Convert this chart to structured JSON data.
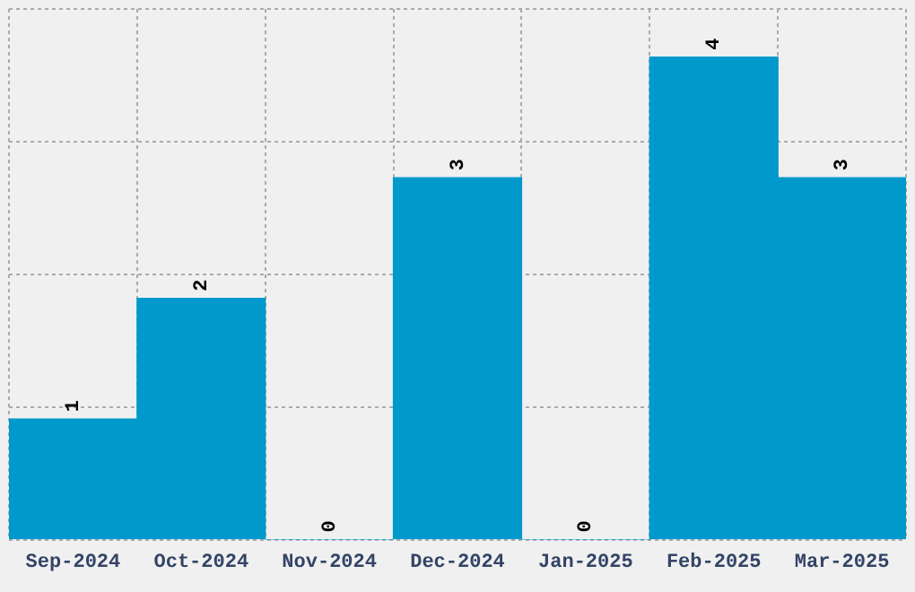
{
  "chart_data": {
    "type": "bar",
    "categories": [
      "Sep-2024",
      "Oct-2024",
      "Nov-2024",
      "Dec-2024",
      "Jan-2025",
      "Feb-2025",
      "Mar-2025"
    ],
    "values": [
      1,
      2,
      0,
      3,
      0,
      4,
      3
    ],
    "color": "#0099cc",
    "ylim": [
      0,
      4.4
    ],
    "yticks": [
      {
        "value": 0,
        "label": null
      },
      {
        "value": 1.1,
        "label": null
      },
      {
        "value": 2.2,
        "label": null
      },
      {
        "value": 3.3,
        "label": null
      },
      {
        "value": 4.4,
        "label": null
      }
    ],
    "grid": true,
    "data_labels": true,
    "tick_labels": "x",
    "legend": false
  }
}
